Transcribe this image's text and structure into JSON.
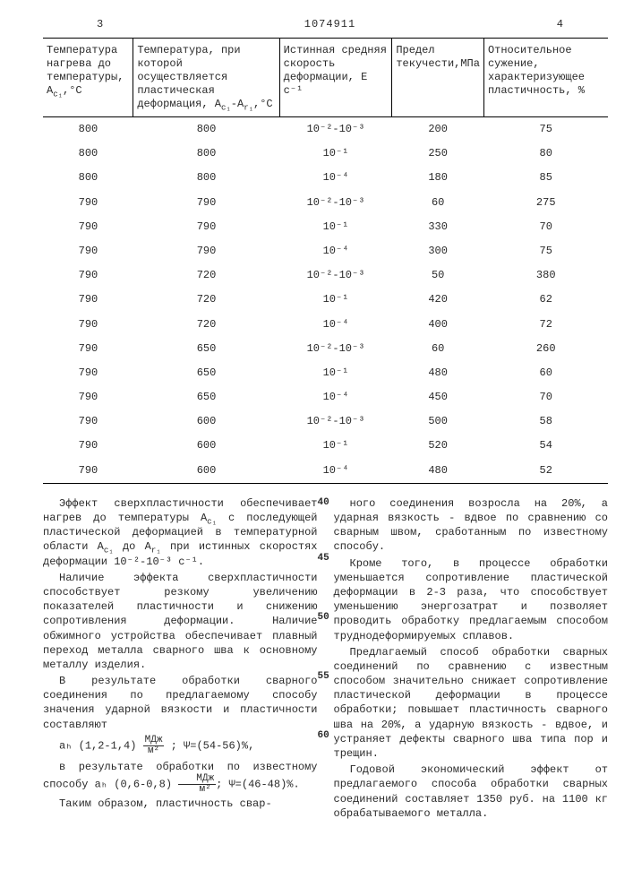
{
  "header": {
    "left_page": "3",
    "patent_number": "1074911",
    "right_page": "4"
  },
  "table": {
    "columns": [
      "Температура нагрева до температуры, A<sub>с₁</sub>,°С",
      "Температура, при которой осуществляется пластическая деформация, A<sub>с₁</sub>-A<sub>r₁</sub>,°С",
      "Истинная средняя скорость деформации, Е с⁻¹",
      "Предел текучести,МПа",
      "Относительное сужение, характеризующее пластичность, %"
    ],
    "rows": [
      [
        "800",
        "800",
        "10⁻²-10⁻³",
        "200",
        "75"
      ],
      [
        "800",
        "800",
        "10⁻¹",
        "250",
        "80"
      ],
      [
        "800",
        "800",
        "10⁻⁴",
        "180",
        "85"
      ],
      [
        "790",
        "790",
        "10⁻²-10⁻³",
        "60",
        "275"
      ],
      [
        "790",
        "790",
        "10⁻¹",
        "330",
        "70"
      ],
      [
        "790",
        "790",
        "10⁻⁴",
        "300",
        "75"
      ],
      [
        "790",
        "720",
        "10⁻²-10⁻³",
        "50",
        "380"
      ],
      [
        "790",
        "720",
        "10⁻¹",
        "420",
        "62"
      ],
      [
        "790",
        "720",
        "10⁻⁴",
        "400",
        "72"
      ],
      [
        "790",
        "650",
        "10⁻²-10⁻³",
        "60",
        "260"
      ],
      [
        "790",
        "650",
        "10⁻¹",
        "480",
        "60"
      ],
      [
        "790",
        "650",
        "10⁻⁴",
        "450",
        "70"
      ],
      [
        "790",
        "600",
        "10⁻²-10⁻³",
        "500",
        "58"
      ],
      [
        "790",
        "600",
        "10⁻¹",
        "520",
        "54"
      ],
      [
        "790",
        "600",
        "10⁻⁴",
        "480",
        "52"
      ]
    ]
  },
  "left_col": {
    "p1": "Эффект сверхпластичности обеспечивает нагрев до температуры A",
    "p1b": " с последующей пластической деформацией в температурной области A",
    "p1c": " до A",
    "p1d": " при истинных скоростях деформации 10⁻²-10⁻³ с⁻¹.",
    "p2": "Наличие эффекта сверхпластичности способствует резкому увеличению показателей пластичности и снижению сопротивления деформации. Наличие обжимного устройства обеспечивает плавный переход металла сварного шва к основному металлу изделия.",
    "p3": "В результате обработки сварного соединения по предлагаемому способу значения ударной вязкости и пластичности составляют",
    "formula1_a": "aₕ (1,2-1,4)",
    "formula1_unit_num": "МДж",
    "formula1_unit_den": "м²",
    "formula1_psi": "; Ψ=(54-56)%,",
    "p4": "в результате обработки по известному способу aₕ (0,6-0,8) ",
    "formula2_unit_num": "МДж",
    "formula2_unit_den": "м²",
    "formula2_psi": "; Ψ=(46-48)%.",
    "p5": "Таким образом, пластичность свар-"
  },
  "right_col": {
    "p1": "ного соединения возросла на 20%, а ударная вязкость - вдвое по сравнению со сварным швом, сработанным по известному способу.",
    "p2": "Кроме того, в процессе обработки уменьшается сопротивление пластической деформации в 2-3 раза, что способствует уменьшению энергозатрат и позволяет проводить обработку предлагаемым способом труднодеформируемых сплавов.",
    "p3": "Предлагаемый способ обработки сварных соединений по сравнению с известным способом значительно снижает сопротивление пластической деформации в процессе обработки; повышает пластичность сварного шва на 20%, а ударную вязкость - вдвое, и устраняет дефекты сварного шва типа пор и трещин.",
    "p4": "Годовой экономический эффект от предлагаемого способа обработки сварных соединений составляет 1350 руб. на 1100 кг обрабатываемого металла."
  },
  "marks": {
    "m40": "40",
    "m45": "45",
    "m50": "50",
    "m55": "55",
    "m60": "60"
  }
}
